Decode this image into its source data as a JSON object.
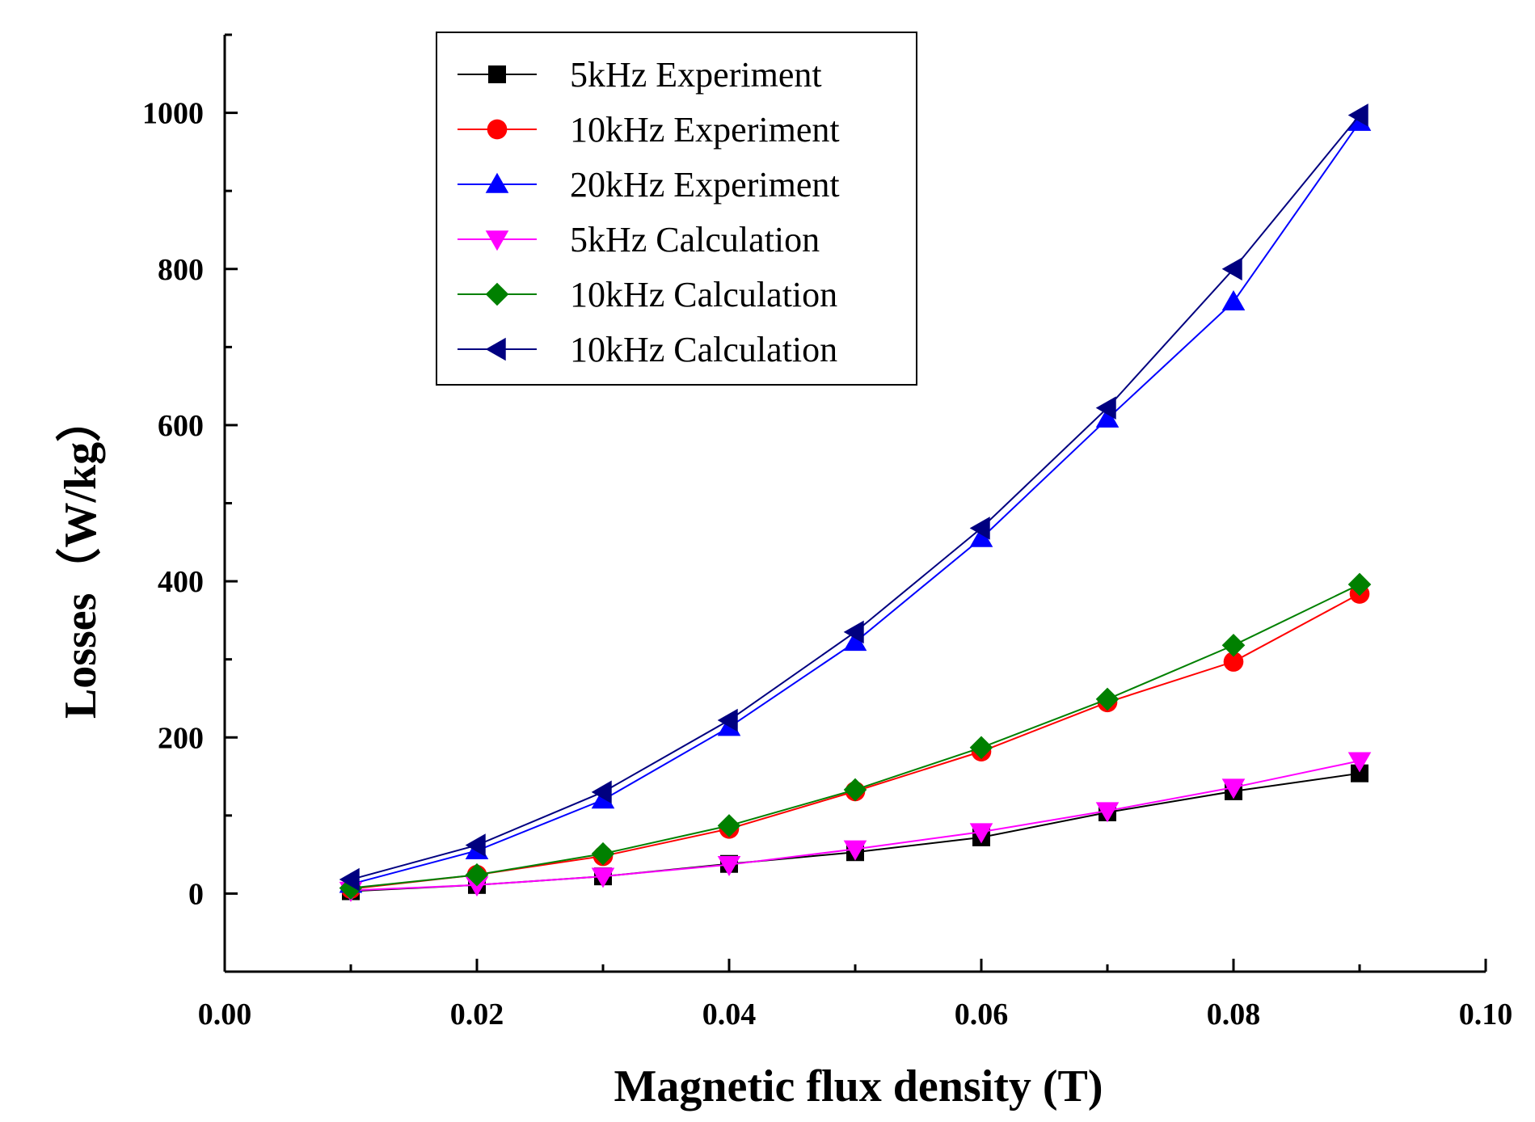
{
  "chart_data": {
    "type": "line",
    "title": "",
    "xlabel": "Magnetic flux density (T)",
    "ylabel": "Losses（W/kg）",
    "xlim": [
      0.0,
      0.1
    ],
    "ylim": [
      -100,
      1100
    ],
    "xticks": [
      0.0,
      0.02,
      0.04,
      0.06,
      0.08,
      0.1
    ],
    "xtick_labels": [
      "0.00",
      "0.02",
      "0.04",
      "0.06",
      "0.08",
      "0.10"
    ],
    "yticks": [
      0,
      200,
      400,
      600,
      800,
      1000
    ],
    "ytick_labels": [
      "0",
      "200",
      "400",
      "600",
      "800",
      "1000"
    ],
    "grid": false,
    "legend_position": "top-left",
    "x": [
      0.01,
      0.02,
      0.03,
      0.04,
      0.05,
      0.06,
      0.07,
      0.08,
      0.09
    ],
    "series": [
      {
        "name": "5kHz Experiment",
        "color": "#000000",
        "marker": "square",
        "values": [
          3,
          11,
          22,
          38,
          53,
          72,
          104,
          131,
          154
        ]
      },
      {
        "name": "10kHz Experiment",
        "color": "#ff0000",
        "marker": "circle",
        "values": [
          6,
          24,
          48,
          83,
          131,
          182,
          245,
          297,
          384
        ]
      },
      {
        "name": "20kHz Experiment",
        "color": "#0000ff",
        "marker": "triangle-up",
        "values": [
          12,
          55,
          120,
          213,
          322,
          455,
          608,
          758,
          988
        ]
      },
      {
        "name": "5kHz Calculation",
        "color": "#ff00ff",
        "marker": "triangle-down",
        "values": [
          4,
          11,
          22,
          37,
          57,
          79,
          106,
          136,
          170
        ]
      },
      {
        "name": "10kHz Calculation",
        "color": "#008000",
        "marker": "diamond",
        "values": [
          7,
          24,
          51,
          87,
          133,
          187,
          249,
          318,
          396
        ]
      },
      {
        "name": "10kHz Calculation",
        "color": "#000080",
        "marker": "triangle-left",
        "values": [
          18,
          62,
          130,
          222,
          335,
          468,
          622,
          800,
          997
        ]
      }
    ]
  }
}
